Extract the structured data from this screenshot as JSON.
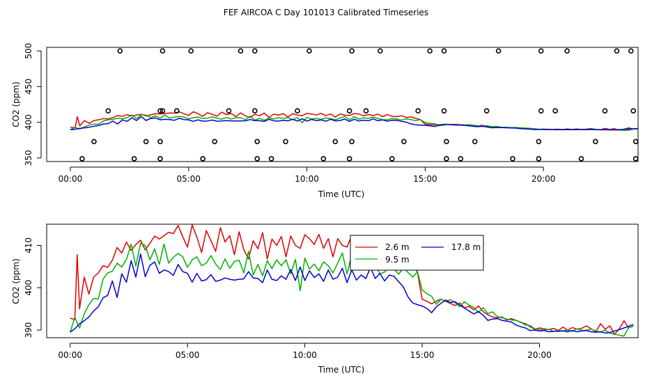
{
  "title": "FEF AIRCOA C  Day 101013  Calibrated Timeseries",
  "chart_data": [
    {
      "type": "line+scatter",
      "xlabel": "Time (UTC)",
      "ylabel": "CO2 (ppm)",
      "xlim": [
        -1,
        24
      ],
      "ylim": [
        345,
        505
      ],
      "xticks": [
        0,
        5,
        10,
        15,
        20
      ],
      "xtick_labels": [
        "00:00",
        "05:00",
        "10:00",
        "15:00",
        "20:00"
      ],
      "yticks": [
        350,
        400,
        450,
        500
      ],
      "ytick_labels": [
        "350",
        "400",
        "450",
        "500"
      ],
      "series": [
        {
          "name": "2.6 m",
          "color": "#e00000"
        },
        {
          "name": "9.5 m",
          "color": "#00b000"
        },
        {
          "name": "17.8 m",
          "color": "#0000d0"
        }
      ],
      "flag_points": [
        {
          "x": 2.1,
          "y": 500
        },
        {
          "x": 3.9,
          "y": 500
        },
        {
          "x": 5.1,
          "y": 500
        },
        {
          "x": 7.2,
          "y": 500
        },
        {
          "x": 7.8,
          "y": 500
        },
        {
          "x": 10.1,
          "y": 500
        },
        {
          "x": 11.9,
          "y": 500
        },
        {
          "x": 13.1,
          "y": 500
        },
        {
          "x": 15.2,
          "y": 500
        },
        {
          "x": 15.8,
          "y": 500
        },
        {
          "x": 18.1,
          "y": 500
        },
        {
          "x": 19.9,
          "y": 500
        },
        {
          "x": 21.0,
          "y": 500
        },
        {
          "x": 23.1,
          "y": 500
        },
        {
          "x": 23.7,
          "y": 500
        },
        {
          "x": 1.6,
          "y": 416
        },
        {
          "x": 3.8,
          "y": 416
        },
        {
          "x": 3.9,
          "y": 416
        },
        {
          "x": 4.5,
          "y": 416
        },
        {
          "x": 6.7,
          "y": 416
        },
        {
          "x": 7.8,
          "y": 416
        },
        {
          "x": 9.6,
          "y": 416
        },
        {
          "x": 11.8,
          "y": 416
        },
        {
          "x": 12.5,
          "y": 416
        },
        {
          "x": 14.7,
          "y": 416
        },
        {
          "x": 15.8,
          "y": 416
        },
        {
          "x": 17.6,
          "y": 416
        },
        {
          "x": 19.9,
          "y": 416
        },
        {
          "x": 20.5,
          "y": 416
        },
        {
          "x": 22.6,
          "y": 416
        },
        {
          "x": 23.8,
          "y": 416
        },
        {
          "x": 1.0,
          "y": 373
        },
        {
          "x": 3.2,
          "y": 373
        },
        {
          "x": 3.8,
          "y": 373
        },
        {
          "x": 6.1,
          "y": 373
        },
        {
          "x": 7.9,
          "y": 373
        },
        {
          "x": 9.1,
          "y": 373
        },
        {
          "x": 11.2,
          "y": 373
        },
        {
          "x": 11.9,
          "y": 373
        },
        {
          "x": 14.1,
          "y": 373
        },
        {
          "x": 15.9,
          "y": 373
        },
        {
          "x": 17.1,
          "y": 373
        },
        {
          "x": 19.8,
          "y": 373
        },
        {
          "x": 22.2,
          "y": 373
        },
        {
          "x": 23.9,
          "y": 373
        },
        {
          "x": 0.5,
          "y": 349
        },
        {
          "x": 2.7,
          "y": 349
        },
        {
          "x": 3.8,
          "y": 349
        },
        {
          "x": 5.6,
          "y": 349
        },
        {
          "x": 7.9,
          "y": 349
        },
        {
          "x": 8.5,
          "y": 349
        },
        {
          "x": 10.7,
          "y": 349
        },
        {
          "x": 11.8,
          "y": 349
        },
        {
          "x": 13.6,
          "y": 349
        },
        {
          "x": 15.9,
          "y": 349
        },
        {
          "x": 16.5,
          "y": 349
        },
        {
          "x": 18.7,
          "y": 349
        },
        {
          "x": 19.8,
          "y": 349
        },
        {
          "x": 21.6,
          "y": 349
        },
        {
          "x": 23.9,
          "y": 349
        }
      ]
    },
    {
      "type": "line",
      "xlabel": "Time (UTC)",
      "ylabel": "CO2 (ppm)",
      "xlim": [
        -1,
        24.2
      ],
      "ylim": [
        388.2,
        415
      ],
      "xticks": [
        0,
        5,
        10,
        15,
        20
      ],
      "xtick_labels": [
        "00:00",
        "05:00",
        "10:00",
        "15:00",
        "20:00"
      ],
      "yticks": [
        390,
        400,
        410
      ],
      "ytick_labels": [
        "390",
        "400",
        "410"
      ],
      "legend": {
        "position": "top-center",
        "entries": [
          "2.6 m",
          "9.5 m",
          "17.8 m"
        ]
      },
      "series": [
        {
          "name": "2.6 m",
          "color": "#e00000",
          "x": [
            0,
            0.2,
            0.3,
            0.4,
            0.6,
            0.8,
            1.0,
            1.2,
            1.4,
            1.6,
            1.8,
            2.0,
            2.2,
            2.4,
            2.6,
            2.8,
            3.0,
            3.2,
            3.4,
            3.6,
            3.8,
            4.0,
            4.2,
            4.4,
            4.6,
            4.8,
            5.0,
            5.2,
            5.4,
            5.6,
            5.8,
            6.0,
            6.2,
            6.4,
            6.6,
            6.8,
            7.0,
            7.2,
            7.4,
            7.6,
            7.8,
            8.0,
            8.2,
            8.4,
            8.6,
            8.8,
            9.0,
            9.2,
            9.4,
            9.6,
            9.8,
            10.0,
            10.2,
            10.4,
            10.6,
            10.8,
            11.0,
            11.2,
            11.4,
            11.6,
            11.8,
            12.0,
            12.2,
            12.4,
            12.6,
            12.8,
            13.0,
            13.2,
            13.4,
            13.6,
            13.8,
            14.0,
            14.2,
            14.4,
            14.6,
            14.8,
            15.0,
            15.2,
            15.4,
            15.6,
            15.8,
            16.0,
            16.2,
            16.4,
            16.6,
            16.8,
            17.0,
            17.2,
            17.4,
            17.6,
            17.8,
            18.0,
            18.2,
            18.4,
            18.6,
            18.8,
            19.0,
            19.2,
            19.4,
            19.6,
            19.8,
            20.0,
            20.2,
            20.4,
            20.6,
            20.8,
            21.0,
            21.2,
            21.4,
            21.6,
            21.8,
            22.0,
            22.2,
            22.4,
            22.6,
            22.8,
            23.0,
            23.2,
            23.4,
            23.6,
            23.8,
            24.0
          ],
          "values": [
            392.8,
            392.5,
            407.8,
            395.0,
            402.5,
            398.5,
            402.5,
            403.5,
            405.2,
            404.8,
            406.5,
            409.5,
            408.2,
            410.8,
            408.8,
            410.2,
            411.2,
            408.9,
            410.5,
            412.2,
            411.5,
            412.3,
            413.1,
            412.8,
            414.7,
            412.0,
            409.6,
            414.8,
            412.0,
            408.3,
            413.5,
            411.1,
            408.6,
            414.2,
            410.8,
            412.3,
            407.8,
            413.2,
            409.0,
            406.8,
            411.1,
            409.2,
            413.0,
            406.8,
            411.5,
            410.0,
            412.1,
            407.3,
            412.2,
            410.0,
            409.3,
            412.5,
            411.6,
            410.2,
            412.6,
            409.3,
            411.6,
            407.3,
            411.6,
            410.0,
            409.6,
            412.3,
            411.5,
            409.2,
            410.9,
            409.6,
            411.3,
            407.9,
            410.8,
            408.3,
            407.9,
            409.2,
            406.8,
            407.5,
            405.5,
            403.7,
            397.3,
            396.8,
            396.2,
            396.8,
            397.3,
            396.8,
            396.3,
            395.8,
            396.4,
            395.3,
            395.6,
            394.8,
            395.7,
            394.4,
            393.6,
            393.1,
            392.9,
            393.1,
            392.4,
            392.7,
            392.3,
            391.8,
            391.5,
            390.8,
            390.2,
            390.5,
            390.3,
            390.1,
            390.4,
            389.9,
            390.7,
            390.0,
            390.6,
            390.2,
            390.4,
            391.0,
            390.3,
            389.6,
            391.5,
            390.2,
            391.0,
            389.0,
            390.3,
            392.2,
            390.5,
            391.0
          ]
        },
        {
          "name": "9.5 m",
          "color": "#00b000",
          "x": [
            0,
            0.2,
            0.4,
            0.6,
            0.8,
            1.0,
            1.2,
            1.4,
            1.6,
            1.8,
            2.0,
            2.2,
            2.4,
            2.6,
            2.8,
            3.0,
            3.2,
            3.4,
            3.6,
            3.8,
            4.0,
            4.2,
            4.4,
            4.6,
            4.8,
            5.0,
            5.2,
            5.4,
            5.6,
            5.8,
            6.0,
            6.2,
            6.4,
            6.6,
            6.8,
            7.0,
            7.2,
            7.4,
            7.6,
            7.8,
            8.0,
            8.2,
            8.4,
            8.6,
            8.8,
            9.0,
            9.2,
            9.4,
            9.6,
            9.8,
            10.0,
            10.2,
            10.4,
            10.6,
            10.8,
            11.0,
            11.2,
            11.4,
            11.6,
            11.8,
            12.0,
            12.2,
            12.4,
            12.6,
            12.8,
            13.0,
            13.2,
            13.4,
            13.6,
            13.8,
            14.0,
            14.2,
            14.4,
            14.6,
            14.8,
            15.0,
            15.2,
            15.4,
            15.6,
            15.8,
            16.0,
            16.2,
            16.4,
            16.6,
            16.8,
            17.0,
            17.2,
            17.4,
            17.6,
            17.8,
            18.0,
            18.2,
            18.4,
            18.6,
            18.8,
            19.0,
            19.2,
            19.4,
            19.6,
            19.8,
            20.0,
            20.2,
            20.4,
            20.6,
            20.8,
            21.0,
            21.2,
            21.4,
            21.6,
            21.8,
            22.0,
            22.2,
            22.4,
            22.6,
            22.8,
            23.0,
            23.2,
            23.4,
            23.6,
            23.8,
            24.0
          ],
          "values": [
            389.5,
            393.0,
            390.5,
            393.8,
            396.0,
            397.5,
            397.3,
            402.0,
            403.5,
            403.9,
            405.8,
            404.9,
            406.7,
            410.3,
            405.1,
            410.5,
            410.0,
            406.6,
            409.2,
            405.5,
            410.3,
            405.8,
            407.2,
            408.1,
            407.3,
            404.8,
            406.6,
            407.3,
            405.2,
            405.8,
            407.6,
            405.6,
            404.3,
            406.8,
            404.6,
            406.2,
            406.5,
            403.5,
            408.6,
            403.0,
            405.5,
            402.8,
            406.4,
            404.5,
            406.6,
            405.2,
            406.6,
            403.3,
            406.7,
            399.3,
            407.0,
            404.4,
            405.6,
            404.0,
            406.1,
            405.2,
            403.5,
            405.8,
            408.2,
            403.3,
            407.8,
            404.3,
            406.4,
            405.5,
            407.3,
            405.4,
            403.3,
            403.7,
            405.2,
            404.5,
            403.2,
            404.7,
            403.6,
            402.5,
            403.8,
            399.5,
            398.6,
            398.0,
            396.1,
            397.3,
            396.8,
            397.2,
            396.5,
            395.5,
            396.7,
            395.9,
            395.3,
            394.1,
            395.3,
            393.9,
            394.3,
            393.2,
            392.9,
            392.6,
            392.4,
            392.3,
            391.9,
            391.2,
            391.1,
            390.3,
            390.1,
            390.0,
            390.2,
            389.7,
            389.9,
            389.8,
            390.0,
            389.7,
            390.3,
            389.9,
            390.0,
            390.2,
            389.8,
            389.5,
            390.0,
            389.3,
            389.0,
            388.8,
            388.6,
            390.6,
            390.9
          ]
        },
        {
          "name": "17.8 m",
          "color": "#0000d0",
          "x": [
            0,
            0.2,
            0.4,
            0.6,
            0.8,
            1.0,
            1.2,
            1.4,
            1.6,
            1.8,
            2.0,
            2.2,
            2.4,
            2.6,
            2.8,
            3.0,
            3.2,
            3.4,
            3.6,
            3.8,
            4.0,
            4.2,
            4.4,
            4.6,
            4.8,
            5.0,
            5.2,
            5.4,
            5.6,
            5.8,
            6.0,
            6.2,
            6.4,
            6.6,
            6.8,
            7.0,
            7.2,
            7.4,
            7.6,
            7.8,
            8.0,
            8.2,
            8.4,
            8.6,
            8.8,
            9.0,
            9.2,
            9.4,
            9.6,
            9.8,
            10.0,
            10.2,
            10.4,
            10.6,
            10.8,
            11.0,
            11.2,
            11.4,
            11.6,
            11.8,
            12.0,
            12.2,
            12.4,
            12.6,
            12.8,
            13.0,
            13.2,
            13.4,
            13.6,
            13.8,
            14.0,
            14.2,
            14.4,
            14.6,
            14.8,
            15.0,
            15.2,
            15.4,
            15.6,
            15.8,
            16.0,
            16.2,
            16.4,
            16.6,
            16.8,
            17.0,
            17.2,
            17.4,
            17.6,
            17.8,
            18.0,
            18.2,
            18.4,
            18.6,
            18.8,
            19.0,
            19.2,
            19.4,
            19.6,
            19.8,
            20.0,
            20.2,
            20.4,
            20.6,
            20.8,
            21.0,
            21.2,
            21.4,
            21.6,
            21.8,
            22.0,
            22.2,
            22.4,
            22.6,
            22.8,
            23.0,
            23.2,
            23.4,
            23.6,
            23.8,
            24.0
          ],
          "values": [
            389.5,
            390.3,
            391.5,
            392.2,
            393.1,
            394.5,
            395.5,
            397.6,
            398.2,
            401.6,
            397.7,
            403.3,
            401.3,
            406.4,
            402.5,
            408.0,
            402.6,
            405.3,
            406.1,
            403.4,
            404.2,
            403.8,
            402.9,
            405.5,
            403.8,
            403.4,
            401.3,
            403.4,
            401.6,
            401.9,
            403.1,
            401.5,
            401.8,
            402.3,
            402.0,
            401.8,
            402.0,
            402.1,
            403.8,
            402.3,
            402.2,
            401.2,
            404.2,
            402.0,
            401.7,
            402.8,
            402.0,
            404.3,
            401.7,
            404.9,
            401.7,
            404.0,
            402.4,
            403.3,
            401.5,
            404.2,
            402.0,
            402.5,
            404.6,
            401.2,
            404.2,
            401.8,
            403.0,
            402.2,
            404.8,
            402.2,
            403.4,
            401.6,
            403.0,
            402.7,
            401.4,
            400.2,
            397.8,
            396.4,
            396.0,
            395.7,
            395.1,
            394.1,
            395.5,
            396.3,
            397.1,
            396.5,
            396.7,
            395.9,
            395.2,
            394.5,
            393.8,
            394.4,
            393.5,
            392.3,
            392.6,
            392.7,
            392.3,
            392.1,
            391.9,
            391.2,
            390.8,
            390.5,
            389.9,
            390.0,
            389.8,
            389.9,
            389.6,
            389.7,
            389.7,
            389.8,
            389.6,
            389.9,
            389.6,
            389.8,
            389.9,
            389.6,
            389.5,
            389.6,
            389.3,
            389.4,
            389.8,
            390.1,
            390.5,
            390.9,
            391.3
          ]
        }
      ]
    }
  ]
}
